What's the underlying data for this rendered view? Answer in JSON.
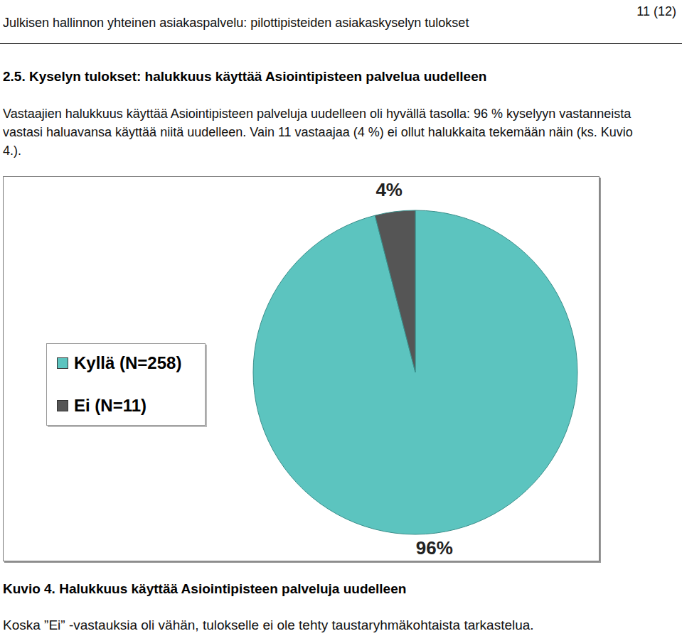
{
  "header": {
    "title": "Julkisen hallinnon yhteinen asiakaspalvelu: pilottipisteiden asiakaskyselyn tulokset",
    "page": "11 (12)"
  },
  "heading": "2.5. Kyselyn tulokset: halukkuus käyttää Asiointipisteen palvelua uudelleen",
  "paragraph": "Vastaajien halukkuus käyttää Asiointipisteen palveluja uudelleen oli hyvällä tasolla: 96 % kyselyyn vastanneista vastasi haluavansa käyttää niitä uudelleen. Vain 11 vastaajaa (4 %) ei ollut halukkaita tekemään näin (ks. Kuvio 4.).",
  "chart_data": {
    "type": "pie",
    "categories": [
      "Kyllä (N=258)",
      "Ei (N=11)"
    ],
    "values": [
      96,
      4
    ],
    "value_labels": [
      "96%",
      "4%"
    ],
    "colors": [
      "#5cc4bf",
      "#555555"
    ],
    "data_labels": true,
    "legend": "left"
  },
  "caption": "Kuvio 4. Halukkuus käyttää Asiointipisteen palveluja uudelleen",
  "note": "Koska ”Ei” -vastauksia oli vähän, tulokselle ei ole tehty taustaryhmäkohtaista tarkastelua."
}
